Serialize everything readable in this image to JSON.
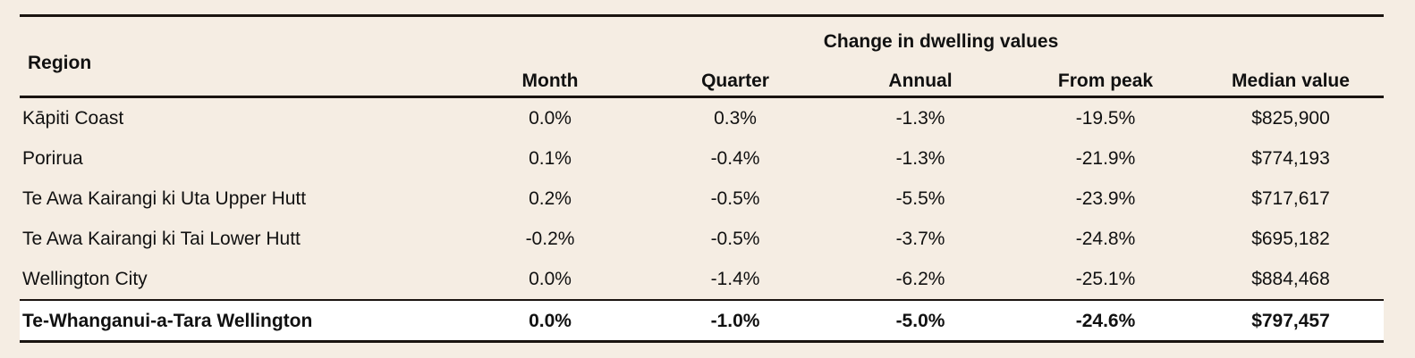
{
  "table": {
    "region_header": "Region",
    "group_header": "Change in dwelling values",
    "columns": [
      "Month",
      "Quarter",
      "Annual",
      "From peak",
      "Median value"
    ],
    "rows": [
      {
        "region": "Kāpiti Coast",
        "values": [
          "0.0%",
          "0.3%",
          "-1.3%",
          "-19.5%",
          "$825,900"
        ]
      },
      {
        "region": "Porirua",
        "values": [
          "0.1%",
          "-0.4%",
          "-1.3%",
          "-21.9%",
          "$774,193"
        ]
      },
      {
        "region": "Te Awa Kairangi ki Uta Upper Hutt",
        "values": [
          "0.2%",
          "-0.5%",
          "-5.5%",
          "-23.9%",
          "$717,617"
        ]
      },
      {
        "region": "Te Awa Kairangi ki Tai Lower Hutt",
        "values": [
          "-0.2%",
          "-0.5%",
          "-3.7%",
          "-24.8%",
          "$695,182"
        ]
      },
      {
        "region": "Wellington City",
        "values": [
          "0.0%",
          "-1.4%",
          "-6.2%",
          "-25.1%",
          "$884,468"
        ]
      }
    ],
    "total": {
      "region": "Te-Whanganui-a-Tara Wellington",
      "values": [
        "0.0%",
        "-1.0%",
        "-5.0%",
        "-24.6%",
        "$797,457"
      ]
    }
  }
}
